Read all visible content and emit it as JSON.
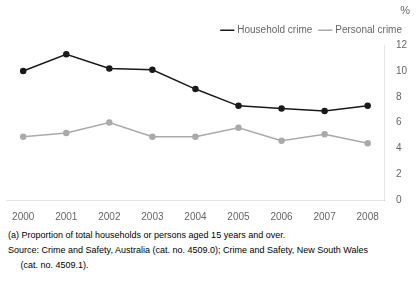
{
  "chart_data": {
    "type": "line",
    "ylabel": "%",
    "x": [
      2000,
      2001,
      2002,
      2003,
      2004,
      2005,
      2006,
      2007,
      2008
    ],
    "series": [
      {
        "name": "Household crime",
        "color": "#1a1a1a",
        "marker": "circle",
        "values": [
          10.0,
          11.3,
          10.2,
          10.1,
          8.6,
          7.3,
          7.1,
          6.9,
          7.3
        ]
      },
      {
        "name": "Personal crime",
        "color": "#aaaaaa",
        "marker": "circle",
        "values": [
          4.9,
          5.2,
          6.0,
          4.9,
          4.9,
          5.6,
          4.6,
          5.1,
          4.4
        ]
      }
    ],
    "xlim": [
      1999.6,
      2008.4
    ],
    "xticks": [
      2000,
      2001,
      2002,
      2003,
      2004,
      2005,
      2006,
      2007,
      2008
    ],
    "ylim": [
      0,
      12
    ],
    "yticks": [
      0,
      2,
      4,
      6,
      8,
      10,
      12
    ],
    "grid": false,
    "legend": "upper right",
    "annotations": [
      "(a) Proportion of total households or persons aged 15 years and over.",
      "Source: Crime and Safety, Australia (cat. no. 4509.0); Crime and Safety, New South Wales",
      "     (cat. no. 4509.1)."
    ]
  }
}
